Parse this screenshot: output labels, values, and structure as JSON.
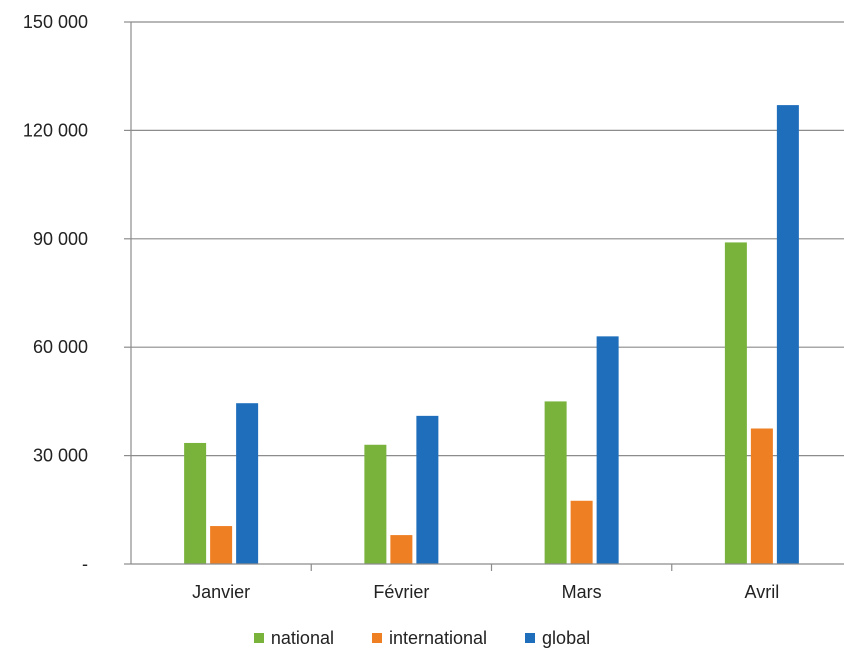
{
  "chart_data": {
    "type": "bar",
    "categories": [
      "Janvier",
      "Février",
      "Mars",
      "Avril"
    ],
    "series": [
      {
        "name": "national",
        "color": "#7AB33C",
        "values": [
          33500,
          33000,
          45000,
          89000
        ]
      },
      {
        "name": "international",
        "color": "#EE7F22",
        "values": [
          10500,
          8000,
          17500,
          37500
        ]
      },
      {
        "name": "global",
        "color": "#1E6EBC",
        "values": [
          44500,
          41000,
          63000,
          127000
        ]
      }
    ],
    "ylim": [
      0,
      150000
    ],
    "yticks": [
      0,
      30000,
      60000,
      90000,
      120000,
      150000
    ],
    "ytick_labels": [
      "-",
      "30 000",
      "60 000",
      "90 000",
      "120 000",
      "150 000"
    ],
    "grid": true,
    "legend_position": "bottom",
    "title": "",
    "xlabel": "",
    "ylabel": ""
  }
}
